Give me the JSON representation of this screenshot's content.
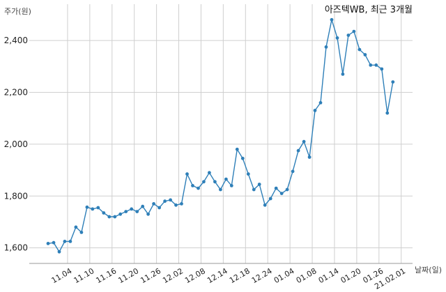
{
  "chart_data": {
    "type": "line",
    "title": "아즈텍WB, 최근 3개월",
    "ylabel": "주가(원)",
    "xlabel": "날짜(일)",
    "ylim": [
      1540,
      2540
    ],
    "yticks": [
      1600,
      1800,
      2000,
      2200,
      2400
    ],
    "ytick_labels": [
      "1,600",
      "1,800",
      "2,000",
      "2,200",
      "2,400"
    ],
    "xtick_labels": [
      "11.04",
      "11.10",
      "11.16",
      "11.20",
      "11.26",
      "12.02",
      "12.08",
      "12.14",
      "12.18",
      "12.24",
      "01.04",
      "01.08",
      "01.14",
      "01.20",
      "01.26",
      "21.02.01"
    ],
    "xtick_positions": [
      3.5,
      7.5,
      11.5,
      15.5,
      19.5,
      23.5,
      27.5,
      31.5,
      35.5,
      39.5,
      43.5,
      47.5,
      51.5,
      55.5,
      59.5,
      63.5
    ],
    "grid": true,
    "color": "#2e7fb8",
    "series": [
      {
        "values": [
          1617,
          1620,
          1585,
          1625,
          1625,
          1680,
          1660,
          1757,
          1750,
          1755,
          1735,
          1720,
          1720,
          1730,
          1740,
          1750,
          1740,
          1760,
          1730,
          1770,
          1755,
          1780,
          1785,
          1765,
          1770,
          1885,
          1840,
          1830,
          1855,
          1890,
          1855,
          1825,
          1865,
          1840,
          1980,
          1945,
          1885,
          1825,
          1845,
          1765,
          1790,
          1830,
          1810,
          1825,
          1895,
          1975,
          2010,
          1950,
          2130,
          2160,
          2375,
          2480,
          2410,
          2270,
          2420,
          2435,
          2365,
          2345,
          2305,
          2305,
          2290,
          2120,
          2240
        ]
      }
    ]
  }
}
